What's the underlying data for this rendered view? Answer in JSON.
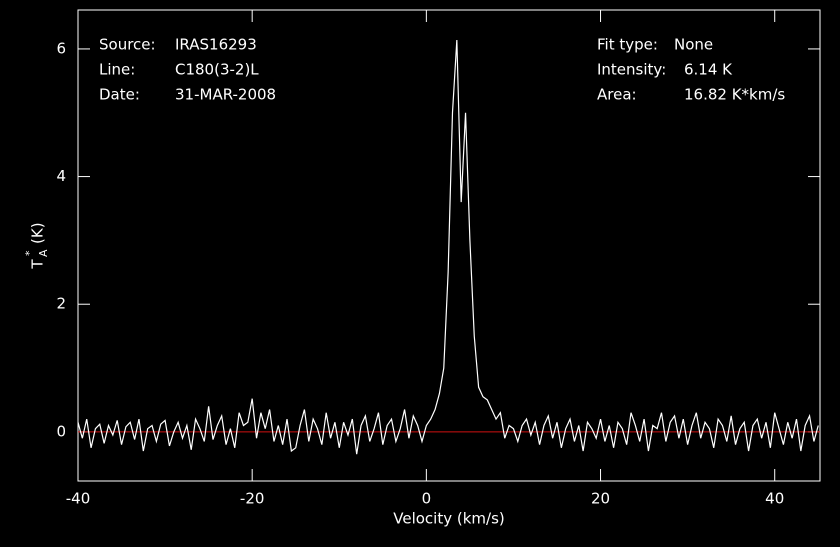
{
  "chart_data": {
    "type": "line",
    "x_label": "Velocity (km/s)",
    "y_label": {
      "base": "T",
      "sup": "*",
      "sub": "A",
      "unit": "(K)"
    },
    "info_left": [
      {
        "label": "Source:",
        "value": "IRAS16293"
      },
      {
        "label": "Line:",
        "value": "C180(3-2)L"
      },
      {
        "label": "Date:",
        "value": "31-MAR-2008"
      }
    ],
    "info_right": [
      {
        "label": "Fit type:",
        "value": "None"
      },
      {
        "label": "Intensity:",
        "value": "6.14 K"
      },
      {
        "label": "Area:",
        "value": "16.82 K*km/s"
      }
    ],
    "xlim": [
      -40,
      45.2
    ],
    "ylim": [
      -0.77,
      6.61
    ],
    "xticks": [
      -40,
      -20,
      0,
      20,
      40
    ],
    "yticks": [
      0,
      2,
      4,
      6
    ],
    "baseline": 0,
    "baseline_color": "#d01010",
    "background": "#000000",
    "x": [
      -40,
      -39.5,
      -39,
      -38.5,
      -38,
      -37.5,
      -37,
      -36.5,
      -36,
      -35.5,
      -35,
      -34.5,
      -34,
      -33.5,
      -33,
      -32.5,
      -32,
      -31.5,
      -31,
      -30.5,
      -30,
      -29.5,
      -29,
      -28.5,
      -28,
      -27.5,
      -27,
      -26.5,
      -26,
      -25.5,
      -25,
      -24.5,
      -24,
      -23.5,
      -23,
      -22.5,
      -22,
      -21.5,
      -21,
      -20.5,
      -20,
      -19.5,
      -19,
      -18.5,
      -18,
      -17.5,
      -17,
      -16.5,
      -16,
      -15.5,
      -15,
      -14.5,
      -14,
      -13.5,
      -13,
      -12.5,
      -12,
      -11.5,
      -11,
      -10.5,
      -10,
      -9.5,
      -9,
      -8.5,
      -8,
      -7.5,
      -7,
      -6.5,
      -6,
      -5.5,
      -5,
      -4.5,
      -4,
      -3.5,
      -3,
      -2.5,
      -2,
      -1.5,
      -1,
      -0.5,
      0,
      0.5,
      1,
      1.5,
      2,
      2.5,
      3,
      3.5,
      4,
      4.5,
      5,
      5.5,
      6,
      6.5,
      7,
      7.5,
      8,
      8.5,
      9,
      9.5,
      10,
      10.5,
      11,
      11.5,
      12,
      12.5,
      13,
      13.5,
      14,
      14.5,
      15,
      15.5,
      16,
      16.5,
      17,
      17.5,
      18,
      18.5,
      19,
      19.5,
      20,
      20.5,
      21,
      21.5,
      22,
      22.5,
      23,
      23.5,
      24,
      24.5,
      25,
      25.5,
      26,
      26.5,
      27,
      27.5,
      28,
      28.5,
      29,
      29.5,
      30,
      30.5,
      31,
      31.5,
      32,
      32.5,
      33,
      33.5,
      34,
      34.5,
      35,
      35.5,
      36,
      36.5,
      37,
      37.5,
      38,
      38.5,
      39,
      39.5,
      40,
      40.5,
      41,
      41.5,
      42,
      42.5,
      43,
      43.5,
      44,
      44.5,
      45
    ],
    "series": [
      {
        "name": "spectrum",
        "color": "#ffffff",
        "values": [
          0.15,
          -0.1,
          0.2,
          -0.25,
          0.05,
          0.12,
          -0.18,
          0.1,
          -0.05,
          0.18,
          -0.2,
          0.08,
          0.15,
          -0.12,
          0.2,
          -0.3,
          0.05,
          0.1,
          -0.15,
          0.12,
          0.18,
          -0.22,
          0.0,
          0.15,
          -0.1,
          0.1,
          -0.28,
          0.2,
          0.05,
          -0.15,
          0.4,
          -0.12,
          0.1,
          0.25,
          -0.2,
          0.05,
          -0.25,
          0.3,
          0.1,
          0.15,
          0.52,
          -0.1,
          0.3,
          0.05,
          0.35,
          -0.15,
          0.1,
          -0.2,
          0.2,
          -0.3,
          -0.25,
          0.1,
          0.35,
          -0.15,
          0.2,
          0.05,
          -0.2,
          0.3,
          -0.1,
          0.15,
          -0.25,
          0.15,
          -0.05,
          0.2,
          -0.35,
          0.1,
          0.25,
          -0.15,
          0.05,
          0.3,
          -0.2,
          0.1,
          0.2,
          -0.15,
          0.05,
          0.35,
          -0.1,
          0.25,
          0.1,
          -0.15,
          0.1,
          0.2,
          0.35,
          0.6,
          1.0,
          2.5,
          5.0,
          6.14,
          3.6,
          5.0,
          3.0,
          1.5,
          0.7,
          0.55,
          0.5,
          0.35,
          0.2,
          0.3,
          -0.1,
          0.1,
          0.05,
          -0.15,
          0.1,
          0.2,
          -0.05,
          0.15,
          -0.2,
          0.1,
          0.25,
          -0.1,
          0.15,
          -0.25,
          0.05,
          0.2,
          -0.15,
          0.1,
          -0.3,
          0.15,
          0.05,
          -0.1,
          0.2,
          -0.15,
          0.1,
          -0.25,
          0.15,
          0.05,
          -0.2,
          0.3,
          0.1,
          -0.15,
          0.2,
          -0.3,
          0.1,
          0.05,
          0.3,
          -0.15,
          0.15,
          0.25,
          -0.1,
          0.2,
          -0.2,
          0.1,
          0.3,
          -0.1,
          0.15,
          0.05,
          -0.25,
          0.2,
          0.1,
          -0.15,
          0.25,
          -0.2,
          0.05,
          0.15,
          -0.3,
          0.1,
          0.2,
          -0.1,
          0.15,
          -0.25,
          0.3,
          0.05,
          -0.2,
          0.15,
          -0.1,
          0.2,
          -0.3,
          0.1,
          0.25,
          -0.15,
          0.1
        ]
      }
    ]
  }
}
